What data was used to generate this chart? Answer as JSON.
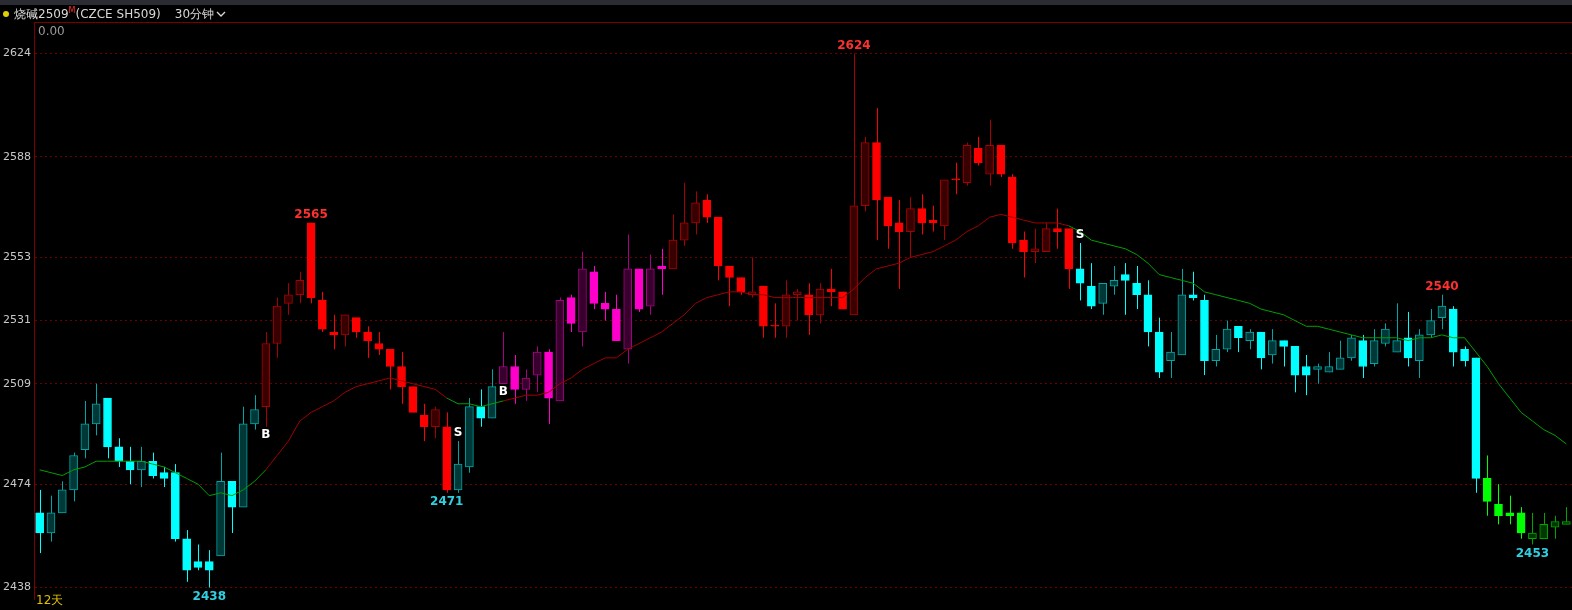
{
  "chart_data": {
    "type": "candlestick",
    "title": "烧碱2509$^{M}$(CZCE SH509)",
    "subtitle": "30分钟",
    "categories": [
      null,
      null,
      null,
      null,
      null,
      null,
      null,
      null,
      null,
      null,
      null,
      null,
      null,
      null,
      null,
      null,
      null,
      null,
      null,
      null,
      null,
      null,
      null,
      null,
      null,
      null,
      null,
      null,
      null,
      null,
      null,
      null,
      null,
      null,
      null,
      null,
      null,
      null,
      null,
      null,
      null,
      null,
      null,
      null,
      null,
      null,
      null,
      null,
      null,
      null,
      null,
      null,
      null,
      null,
      null,
      null,
      null,
      null,
      null,
      null,
      null,
      null,
      null,
      null,
      null,
      null,
      null,
      null,
      null,
      null,
      null,
      null,
      null,
      null,
      null,
      null,
      null,
      null,
      null,
      null,
      null,
      null,
      null,
      null,
      null,
      null,
      null,
      null,
      null,
      null,
      null,
      null,
      null,
      null,
      null,
      null,
      null,
      null,
      null,
      null,
      null,
      null,
      null,
      null,
      null,
      null,
      null,
      null,
      null,
      null,
      null,
      null,
      null,
      null,
      null,
      null,
      null,
      null,
      null,
      null,
      null,
      null,
      null,
      null,
      null,
      null,
      null,
      null,
      null,
      null,
      null,
      null,
      null,
      null,
      null,
      null
    ],
    "ylim": [
      2434,
      2635
    ],
    "yticks": [
      2438,
      2474,
      2509,
      2531,
      2553,
      2588,
      2624
    ],
    "tick_labels": "y",
    "grid": "y",
    "ohlc": [
      [
        2464,
        2472,
        2450,
        2457
      ],
      [
        2457,
        2470,
        2454,
        2464
      ],
      [
        2464,
        2475,
        2464,
        2472
      ],
      [
        2472,
        2485,
        2468,
        2484
      ],
      [
        2486,
        2503,
        2483,
        2495
      ],
      [
        2495,
        2509,
        2491,
        2502
      ],
      [
        2504,
        2504,
        2483,
        2487
      ],
      [
        2487,
        2490,
        2480,
        2482
      ],
      [
        2482,
        2487,
        2474,
        2479
      ],
      [
        2479,
        2487,
        2473,
        2482
      ],
      [
        2482,
        2485,
        2476,
        2477
      ],
      [
        2478,
        2480,
        2473,
        2476
      ],
      [
        2478,
        2481,
        2454,
        2455
      ],
      [
        2455,
        2458,
        2440,
        2444
      ],
      [
        2447,
        2453,
        2444,
        2445
      ],
      [
        2447,
        2451,
        2438,
        2444
      ],
      [
        2449,
        2485,
        2449,
        2475
      ],
      [
        2475,
        2475,
        2457,
        2466
      ],
      [
        2466,
        2501,
        2466,
        2495
      ],
      [
        2495,
        2505,
        2493,
        2500
      ],
      [
        2501,
        2527,
        2494,
        2523
      ],
      [
        2523,
        2539,
        2518,
        2536
      ],
      [
        2537,
        2544,
        2533,
        2540
      ],
      [
        2540,
        2548,
        2537,
        2545
      ],
      [
        2565,
        2565,
        2537,
        2539
      ],
      [
        2538,
        2541,
        2527,
        2528
      ],
      [
        2527,
        2533,
        2521,
        2526
      ],
      [
        2526,
        2533,
        2522,
        2533
      ],
      [
        2532,
        2532,
        2525,
        2527
      ],
      [
        2527,
        2529,
        2518,
        2524
      ],
      [
        2523,
        2527,
        2519,
        2521
      ],
      [
        2521,
        2521,
        2507,
        2515
      ],
      [
        2515,
        2520,
        2502,
        2508
      ],
      [
        2508,
        2508,
        2499,
        2499
      ],
      [
        2498,
        2502,
        2489,
        2494
      ],
      [
        2494,
        2501,
        2490,
        2500
      ],
      [
        2494,
        2499,
        2471,
        2472
      ],
      [
        2472,
        2489,
        2471,
        2481
      ],
      [
        2480,
        2504,
        2478,
        2501
      ],
      [
        2501,
        2507,
        2494,
        2497
      ],
      [
        2497,
        2514,
        2497,
        2508
      ],
      [
        2509,
        2527,
        2509,
        2515
      ],
      [
        2515,
        2519,
        2502,
        2507
      ],
      [
        2507,
        2514,
        2503,
        2511
      ],
      [
        2512,
        2522,
        2506,
        2520
      ],
      [
        2520,
        2521,
        2495,
        2504
      ],
      [
        2503,
        2539,
        2503,
        2538
      ],
      [
        2539,
        2540,
        2527,
        2530
      ],
      [
        2527,
        2555,
        2522,
        2549
      ],
      [
        2548,
        2550,
        2535,
        2537
      ],
      [
        2537,
        2541,
        2531,
        2535
      ],
      [
        2535,
        2540,
        2524,
        2524
      ],
      [
        2521,
        2561,
        2516,
        2549
      ],
      [
        2549,
        2549,
        2534,
        2535
      ],
      [
        2536,
        2554,
        2533,
        2549
      ],
      [
        2550,
        2556,
        2540,
        2549
      ],
      [
        2549,
        2568,
        2549,
        2559
      ],
      [
        2559,
        2579,
        2557,
        2565
      ],
      [
        2565,
        2576,
        2561,
        2572
      ],
      [
        2573,
        2575,
        2565,
        2567
      ],
      [
        2567,
        2567,
        2545,
        2550
      ],
      [
        2550,
        2550,
        2536,
        2546
      ],
      [
        2546,
        2546,
        2540,
        2541
      ],
      [
        2540,
        2553,
        2539,
        2541
      ],
      [
        2543,
        2543,
        2525,
        2529
      ],
      [
        2529,
        2537,
        2525,
        2529
      ],
      [
        2529,
        2545,
        2525,
        2540
      ],
      [
        2540,
        2542,
        2531,
        2541
      ],
      [
        2540,
        2544,
        2526,
        2533
      ],
      [
        2533,
        2544,
        2530,
        2542
      ],
      [
        2542,
        2549,
        2536,
        2541
      ],
      [
        2541,
        2541,
        2535,
        2535
      ],
      [
        2533,
        2624,
        2533,
        2571
      ],
      [
        2571,
        2595,
        2569,
        2593
      ],
      [
        2593,
        2605,
        2559,
        2573
      ],
      [
        2574,
        2574,
        2556,
        2564
      ],
      [
        2565,
        2573,
        2542,
        2562
      ],
      [
        2562,
        2574,
        2553,
        2570
      ],
      [
        2570,
        2575,
        2561,
        2565
      ],
      [
        2566,
        2571,
        2562,
        2565
      ],
      [
        2564,
        2580,
        2559,
        2580
      ],
      [
        2580,
        2586,
        2575,
        2580
      ],
      [
        2579,
        2593,
        2578,
        2592
      ],
      [
        2591,
        2595,
        2585,
        2586
      ],
      [
        2582,
        2601,
        2578,
        2592
      ],
      [
        2592,
        2592,
        2581,
        2582
      ],
      [
        2581,
        2582,
        2556,
        2558
      ],
      [
        2559,
        2562,
        2546,
        2555
      ],
      [
        2555,
        2563,
        2551,
        2556
      ],
      [
        2555,
        2565,
        2555,
        2563
      ],
      [
        2563,
        2570,
        2556,
        2562
      ],
      [
        2563,
        2563,
        2542,
        2549
      ],
      [
        2549,
        2558,
        2538,
        2544
      ],
      [
        2543,
        2551,
        2535,
        2536
      ],
      [
        2537,
        2544,
        2533,
        2544
      ],
      [
        2543,
        2550,
        2540,
        2545
      ],
      [
        2547,
        2551,
        2533,
        2545
      ],
      [
        2544,
        2550,
        2535,
        2540
      ],
      [
        2540,
        2545,
        2522,
        2527
      ],
      [
        2527,
        2532,
        2511,
        2513
      ],
      [
        2517,
        2527,
        2511,
        2520
      ],
      [
        2519,
        2549,
        2519,
        2540
      ],
      [
        2540,
        2548,
        2538,
        2539
      ],
      [
        2538,
        2540,
        2512,
        2517
      ],
      [
        2517,
        2526,
        2515,
        2521
      ],
      [
        2521,
        2531,
        2520,
        2528
      ],
      [
        2529,
        2529,
        2520,
        2525
      ],
      [
        2524,
        2528,
        2521,
        2527
      ],
      [
        2527,
        2527,
        2514,
        2518
      ],
      [
        2519,
        2528,
        2516,
        2524
      ],
      [
        2524,
        2524,
        2515,
        2522
      ],
      [
        2522,
        2522,
        2506,
        2512
      ],
      [
        2515,
        2519,
        2505,
        2512
      ],
      [
        2514,
        2516,
        2509,
        2515
      ],
      [
        2513,
        2520,
        2513,
        2515
      ],
      [
        2514,
        2524,
        2514,
        2518
      ],
      [
        2518,
        2526,
        2517,
        2525
      ],
      [
        2524,
        2526,
        2511,
        2515
      ],
      [
        2516,
        2528,
        2515,
        2524
      ],
      [
        2523,
        2530,
        2522,
        2528
      ],
      [
        2520,
        2537,
        2520,
        2524
      ],
      [
        2525,
        2534,
        2515,
        2518
      ],
      [
        2517,
        2528,
        2511,
        2526
      ],
      [
        2526,
        2535,
        2525,
        2531
      ],
      [
        2532,
        2540,
        2528,
        2536
      ],
      [
        2535,
        2536,
        2515,
        2520
      ],
      [
        2521,
        2522,
        2515,
        2517
      ],
      [
        2518,
        2518,
        2471,
        2476
      ],
      [
        2476,
        2484,
        2463,
        2468
      ],
      [
        2467,
        2474,
        2460,
        2463
      ],
      [
        2464,
        2470,
        2460,
        2463
      ],
      [
        2464,
        2466,
        2455,
        2457
      ],
      [
        2455,
        2464,
        2453,
        2457
      ],
      [
        2455,
        2464,
        2455,
        2460
      ],
      [
        2459,
        2463,
        2455,
        2461
      ],
      [
        2460,
        2466,
        2460,
        2461
      ]
    ],
    "colors": [
      "#00ffff",
      "#00a6a6",
      "#00a6a6",
      "#00a6a6",
      "#00a6a6",
      "#00a6a6",
      "#00ffff",
      "#00ffff",
      "#00ffff",
      "#00a6a6",
      "#00ffff",
      "#00ffff",
      "#00ffff",
      "#00ffff",
      "#00ffff",
      "#00ffff",
      "#00a6a6",
      "#00ffff",
      "#00a6a6",
      "#00a6a6",
      "#a60000",
      "#a60000",
      "#a60000",
      "#a60000",
      "#ff0000",
      "#ff0000",
      "#ff0000",
      "#a60000",
      "#ff0000",
      "#ff0000",
      "#ff0000",
      "#ff0000",
      "#ff0000",
      "#ff0000",
      "#ff0000",
      "#a60000",
      "#ff0000",
      "#00a6a6",
      "#00a6a6",
      "#00ffff",
      "#00a6a6",
      "#a60085",
      "#ff00cc",
      "#a60085",
      "#a60085",
      "#ff00cc",
      "#a60085",
      "#ff00cc",
      "#a60085",
      "#ff00cc",
      "#ff00cc",
      "#ff00cc",
      "#a60085",
      "#ff00cc",
      "#a60085",
      "#ff00cc",
      "#a60000",
      "#a60000",
      "#a60000",
      "#ff0000",
      "#ff0000",
      "#ff0000",
      "#ff0000",
      "#a60000",
      "#ff0000",
      "#ff0000",
      "#a60000",
      "#a60000",
      "#ff0000",
      "#a60000",
      "#ff0000",
      "#ff0000",
      "#a60000",
      "#a60000",
      "#ff0000",
      "#ff0000",
      "#ff0000",
      "#a60000",
      "#ff0000",
      "#ff0000",
      "#a60000",
      "#ff0000",
      "#a60000",
      "#ff0000",
      "#a60000",
      "#ff0000",
      "#ff0000",
      "#ff0000",
      "#a60000",
      "#a60000",
      "#ff0000",
      "#ff0000",
      "#00ffff",
      "#00ffff",
      "#00a6a6",
      "#00a6a6",
      "#00ffff",
      "#00ffff",
      "#00ffff",
      "#00ffff",
      "#00a6a6",
      "#00a6a6",
      "#00ffff",
      "#00ffff",
      "#00a6a6",
      "#00a6a6",
      "#00ffff",
      "#00a6a6",
      "#00ffff",
      "#00a6a6",
      "#00ffff",
      "#00ffff",
      "#00ffff",
      "#00a6a6",
      "#00a6a6",
      "#00a6a6",
      "#00a6a6",
      "#00ffff",
      "#00a6a6",
      "#00a6a6",
      "#00a6a6",
      "#00ffff",
      "#00a6a6",
      "#00a6a6",
      "#00a6a6",
      "#00ffff",
      "#00ffff",
      "#00ffff",
      "#00ff00",
      "#00ff00",
      "#00ff00",
      "#00ff00",
      "#00a600",
      "#00a600",
      "#00a600",
      "#00a600"
    ],
    "value_labels": [
      null,
      null,
      null,
      null,
      null,
      null,
      null,
      null,
      null,
      null,
      null,
      null,
      null,
      null,
      null,
      "2438",
      null,
      null,
      null,
      null,
      "B",
      null,
      null,
      null,
      "2565",
      null,
      null,
      null,
      null,
      null,
      null,
      null,
      null,
      null,
      null,
      null,
      "2471",
      "S",
      null,
      null,
      null,
      "B",
      null,
      null,
      null,
      null,
      null,
      null,
      null,
      null,
      null,
      null,
      null,
      null,
      null,
      null,
      null,
      null,
      null,
      null,
      null,
      null,
      null,
      null,
      null,
      null,
      null,
      null,
      null,
      null,
      null,
      null,
      "2624",
      null,
      null,
      null,
      null,
      null,
      null,
      null,
      null,
      null,
      null,
      null,
      null,
      null,
      null,
      null,
      null,
      null,
      null,
      null,
      "S",
      null,
      null,
      null,
      null,
      null,
      null,
      null,
      null,
      null,
      null,
      null,
      null,
      null,
      null,
      null,
      null,
      null,
      null,
      null,
      null,
      null,
      null,
      null,
      null,
      null,
      null,
      null,
      null,
      null,
      null,
      null,
      "2540",
      null,
      null,
      null,
      null,
      null,
      null,
      null,
      "2453",
      null,
      null,
      null
    ],
    "series": [
      {
        "type": "line",
        "color": "#00a000",
        "values": [
          2479,
          2478,
          2477,
          2479,
          2480,
          2482,
          2482,
          2482,
          2482,
          2482,
          2481,
          2480,
          2478,
          2476,
          2474,
          2470,
          2471,
          2470,
          2472,
          2475,
          2479,
          null,
          null,
          null,
          null,
          null,
          null,
          null,
          null,
          null,
          null,
          null,
          null,
          null,
          null,
          null,
          2504,
          2502,
          2502,
          2501,
          2502,
          2503,
          null,
          null,
          null,
          null,
          null,
          null,
          null,
          null,
          null,
          null,
          null,
          null,
          null,
          null,
          null,
          null,
          null,
          null,
          null,
          null,
          null,
          null,
          null,
          null,
          null,
          null,
          null,
          null,
          null,
          null,
          null,
          null,
          null,
          null,
          null,
          null,
          null,
          null,
          null,
          null,
          null,
          null,
          null,
          null,
          null,
          null,
          null,
          null,
          null,
          2564,
          2562,
          2559,
          2558,
          2557,
          2556,
          2554,
          2551,
          2547,
          2546,
          2545,
          2544,
          2541,
          2540,
          2539,
          2538,
          2537,
          2535,
          2534,
          2533,
          2531,
          2529,
          2529,
          2528,
          2527,
          2526,
          2525,
          2525,
          2525,
          2525,
          2524,
          2525,
          2525,
          2526,
          2525,
          2525,
          2520,
          2515,
          2509,
          2504,
          2499,
          2496,
          2493,
          2491,
          2488
        ]
      },
      {
        "type": "line",
        "color": "#a00000",
        "values": [
          null,
          null,
          null,
          null,
          null,
          null,
          null,
          null,
          null,
          null,
          null,
          null,
          null,
          null,
          null,
          null,
          null,
          null,
          null,
          null,
          2479,
          2484,
          2489,
          2496,
          2499,
          2501,
          2503,
          2506,
          2508,
          2509,
          2510,
          2511,
          2510,
          2509,
          2508,
          2507,
          2504,
          null,
          null,
          null,
          null,
          2503,
          2504,
          2505,
          2505,
          2506,
          2509,
          2511,
          2514,
          2516,
          2518,
          2518,
          2521,
          2523,
          2525,
          2527,
          2530,
          2533,
          2537,
          2539,
          2540,
          2541,
          2541,
          2540,
          2540,
          2539,
          2539,
          2539,
          2539,
          2539,
          2539,
          2539,
          2542,
          2546,
          2549,
          2550,
          2551,
          2553,
          2554,
          2555,
          2557,
          2559,
          2562,
          2564,
          2567,
          2568,
          2567,
          2566,
          2565,
          2565,
          2565,
          2564,
          null,
          null,
          null,
          null,
          null,
          null,
          null,
          null,
          null,
          null,
          null,
          null,
          null,
          null,
          null,
          null,
          null,
          null,
          null,
          null,
          null,
          null,
          null,
          null,
          null,
          null,
          null,
          null,
          null,
          null,
          null,
          null,
          null,
          null,
          null,
          null,
          null,
          null,
          null,
          null,
          null,
          null,
          null,
          null
        ]
      }
    ],
    "marker": "none",
    "annotations": [
      "0.00",
      "12天"
    ]
  }
}
